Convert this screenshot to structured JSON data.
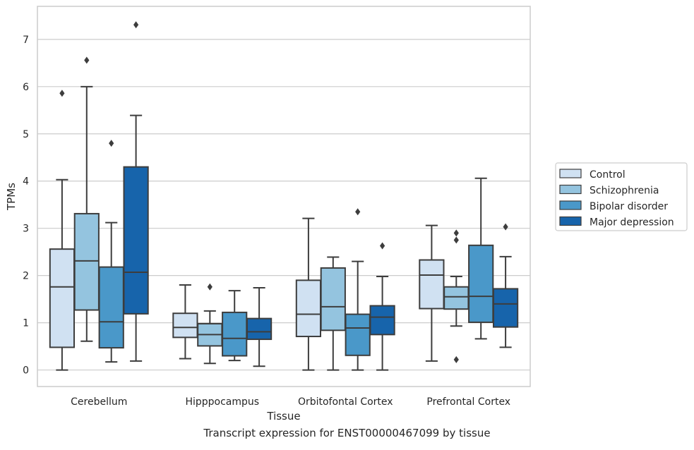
{
  "chart_data": {
    "type": "box",
    "xlabel": "Tissue",
    "ylabel": "TPMs",
    "caption": "Transcript expression for ENST00000467099 by tissue",
    "ylim": [
      -0.35,
      7.7
    ],
    "yticks": [
      0,
      1,
      2,
      3,
      4,
      5,
      6,
      7
    ],
    "grid": "horizontal",
    "legend_position": "right, outside plot",
    "categories": [
      "Cerebellum",
      "Hipppocampus",
      "Orbitofontal Cortex",
      "Prefrontal Cortex"
    ],
    "series": [
      {
        "name": "Control",
        "color": "#d0e1f2",
        "boxes": [
          {
            "whislo": 0.0,
            "q1": 0.48,
            "med": 1.76,
            "q3": 2.56,
            "whishi": 4.03,
            "fliers": [
              5.86
            ]
          },
          {
            "whislo": 0.24,
            "q1": 0.69,
            "med": 0.9,
            "q3": 1.2,
            "whishi": 1.8,
            "fliers": []
          },
          {
            "whislo": 0.0,
            "q1": 0.71,
            "med": 1.18,
            "q3": 1.9,
            "whishi": 3.21,
            "fliers": []
          },
          {
            "whislo": 0.19,
            "q1": 1.3,
            "med": 2.01,
            "q3": 2.33,
            "whishi": 3.06,
            "fliers": []
          }
        ]
      },
      {
        "name": "Schizophrenia",
        "color": "#94c4df",
        "boxes": [
          {
            "whislo": 0.61,
            "q1": 1.27,
            "med": 2.31,
            "q3": 3.31,
            "whishi": 6.0,
            "fliers": [
              6.56
            ]
          },
          {
            "whislo": 0.14,
            "q1": 0.51,
            "med": 0.75,
            "q3": 0.98,
            "whishi": 1.25,
            "fliers": [
              1.76
            ]
          },
          {
            "whislo": 0.0,
            "q1": 0.84,
            "med": 1.34,
            "q3": 2.16,
            "whishi": 2.39,
            "fliers": []
          },
          {
            "whislo": 0.93,
            "q1": 1.29,
            "med": 1.55,
            "q3": 1.76,
            "whishi": 1.98,
            "fliers": [
              0.22,
              2.75,
              2.9
            ]
          }
        ]
      },
      {
        "name": "Bipolar disorder",
        "color": "#4a98c9",
        "boxes": [
          {
            "whislo": 0.17,
            "q1": 0.47,
            "med": 1.02,
            "q3": 2.18,
            "whishi": 3.12,
            "fliers": [
              4.8
            ]
          },
          {
            "whislo": 0.2,
            "q1": 0.3,
            "med": 0.67,
            "q3": 1.22,
            "whishi": 1.68,
            "fliers": []
          },
          {
            "whislo": 0.0,
            "q1": 0.31,
            "med": 0.89,
            "q3": 1.18,
            "whishi": 2.3,
            "fliers": [
              3.35
            ]
          },
          {
            "whislo": 0.66,
            "q1": 1.01,
            "med": 1.56,
            "q3": 2.64,
            "whishi": 4.06,
            "fliers": []
          }
        ]
      },
      {
        "name": "Major depression",
        "color": "#1764ab",
        "boxes": [
          {
            "whislo": 0.19,
            "q1": 1.19,
            "med": 2.07,
            "q3": 4.3,
            "whishi": 5.39,
            "fliers": [
              7.31
            ]
          },
          {
            "whislo": 0.08,
            "q1": 0.65,
            "med": 0.81,
            "q3": 1.09,
            "whishi": 1.74,
            "fliers": []
          },
          {
            "whislo": 0.0,
            "q1": 0.75,
            "med": 1.12,
            "q3": 1.36,
            "whishi": 1.98,
            "fliers": [
              2.63
            ]
          },
          {
            "whislo": 0.48,
            "q1": 0.91,
            "med": 1.4,
            "q3": 1.72,
            "whishi": 2.4,
            "fliers": [
              3.03
            ]
          }
        ]
      }
    ]
  }
}
